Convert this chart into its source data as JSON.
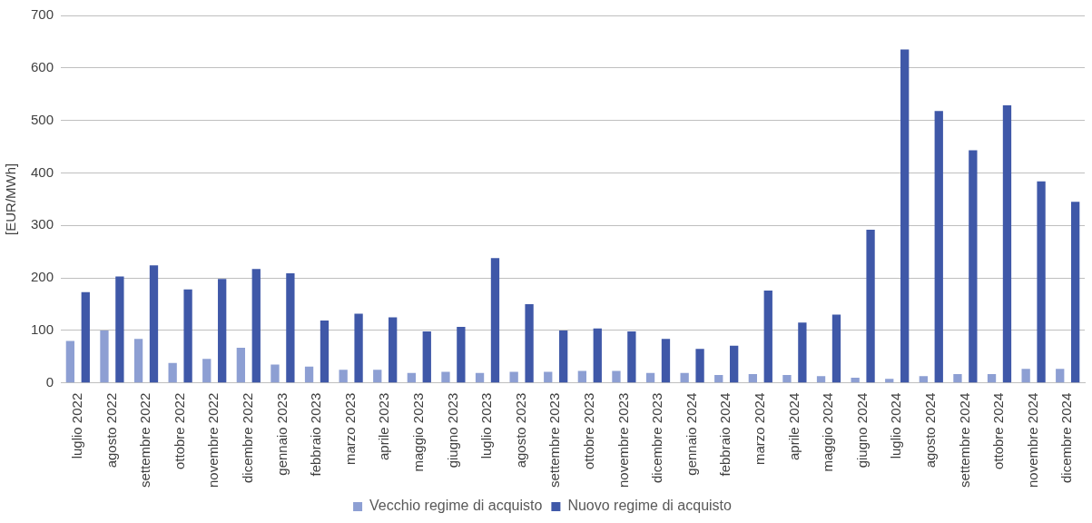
{
  "chart_data": {
    "type": "bar",
    "ylabel": "[EUR/MWh]",
    "categories": [
      "luglio 2022",
      "agosto 2022",
      "settembre 2022",
      "ottobre 2022",
      "novembre 2022",
      "dicembre 2022",
      "gennaio 2023",
      "febbraio 2023",
      "marzo 2023",
      "aprile 2023",
      "maggio 2023",
      "giugno 2023",
      "luglio 2023",
      "agosto 2023",
      "settembre 2023",
      "ottobre 2023",
      "novembre 2023",
      "dicembre 2023",
      "gennaio 2024",
      "febbraio 2024",
      "marzo 2024",
      "aprile 2024",
      "maggio 2024",
      "giugno 2024",
      "luglio 2024",
      "agosto 2024",
      "settembre 2024",
      "ottobre 2024",
      "novembre 2024",
      "dicembre 2024"
    ],
    "series": [
      {
        "name": "Vecchio regime di acquisto",
        "color": "#8d9fd3",
        "values": [
          80,
          100,
          84,
          38,
          46,
          67,
          35,
          31,
          25,
          25,
          19,
          21,
          19,
          21,
          21,
          23,
          23,
          19,
          19,
          15,
          17,
          15,
          13,
          10,
          8,
          13,
          17,
          17,
          27,
          27
        ]
      },
      {
        "name": "Nuovo regime di acquisto",
        "color": "#3f58a8",
        "values": [
          173,
          203,
          224,
          178,
          198,
          217,
          209,
          119,
          132,
          125,
          98,
          107,
          238,
          150,
          100,
          104,
          98,
          84,
          65,
          71,
          176,
          115,
          130,
          292,
          635,
          518,
          443,
          529,
          384,
          345
        ]
      }
    ],
    "ylim": [
      0,
      700
    ],
    "yticks": [
      0,
      100,
      200,
      300,
      400,
      500,
      600,
      700
    ],
    "grid": "y",
    "legend": "bottom"
  }
}
